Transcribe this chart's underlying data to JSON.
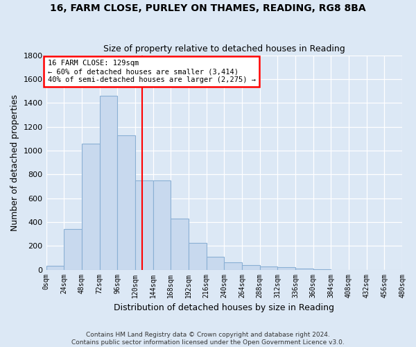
{
  "title1": "16, FARM CLOSE, PURLEY ON THAMES, READING, RG8 8BA",
  "title2": "Size of property relative to detached houses in Reading",
  "xlabel": "Distribution of detached houses by size in Reading",
  "ylabel": "Number of detached properties",
  "footer1": "Contains HM Land Registry data © Crown copyright and database right 2024.",
  "footer2": "Contains public sector information licensed under the Open Government Licence v3.0.",
  "bin_edges": [
    0,
    24,
    48,
    72,
    96,
    120,
    144,
    168,
    192,
    216,
    240,
    264,
    288,
    312,
    336,
    360,
    384,
    408,
    432,
    456,
    480
  ],
  "bin_labels": [
    "0sqm",
    "24sqm",
    "48sqm",
    "72sqm",
    "96sqm",
    "120sqm",
    "144sqm",
    "168sqm",
    "192sqm",
    "216sqm",
    "240sqm",
    "264sqm",
    "288sqm",
    "312sqm",
    "336sqm",
    "360sqm",
    "384sqm",
    "408sqm",
    "432sqm",
    "456sqm",
    "480sqm"
  ],
  "bar_values": [
    30,
    340,
    1060,
    1460,
    1130,
    750,
    750,
    430,
    225,
    110,
    60,
    40,
    25,
    20,
    8,
    5,
    0,
    0,
    0,
    0
  ],
  "bar_color": "#c8d9ee",
  "bar_edgecolor": "#8ab0d4",
  "vline_x": 129,
  "vline_color": "red",
  "annotation_line1": "16 FARM CLOSE: 129sqm",
  "annotation_line2": "← 60% of detached houses are smaller (3,414)",
  "annotation_line3": "40% of semi-detached houses are larger (2,275) →",
  "annotation_box_color": "white",
  "annotation_box_edgecolor": "red",
  "ylim": [
    0,
    1800
  ],
  "yticks": [
    0,
    200,
    400,
    600,
    800,
    1000,
    1200,
    1400,
    1600,
    1800
  ],
  "bin_width": 24,
  "property_sqm": 129,
  "background_color": "#dce8f5",
  "grid_color": "white",
  "figsize": [
    6.0,
    5.0
  ],
  "dpi": 100
}
